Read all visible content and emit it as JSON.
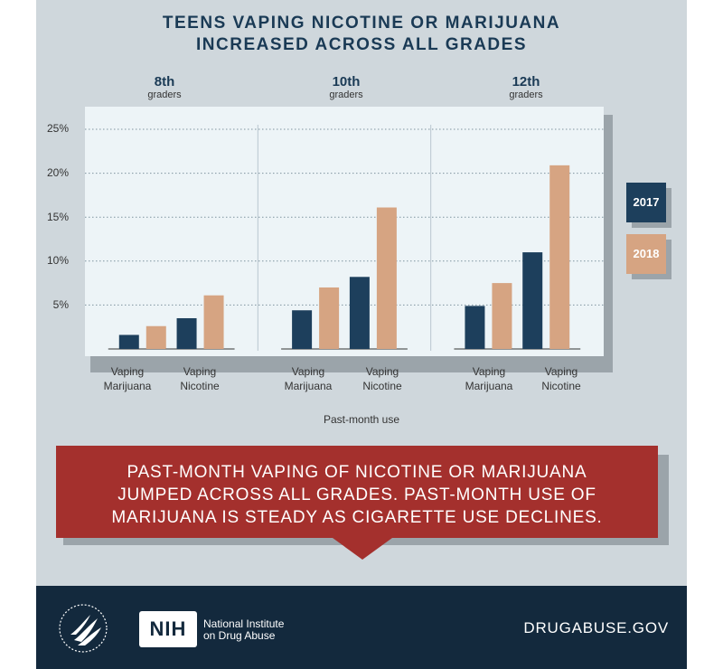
{
  "title_lines": [
    "TEENS VAPING NICOTINE OR MARIJUANA",
    "INCREASED ACROSS ALL GRADES"
  ],
  "groups": [
    {
      "grade": "8th",
      "label": "graders"
    },
    {
      "grade": "10th",
      "label": "graders"
    },
    {
      "grade": "12th",
      "label": "graders"
    }
  ],
  "category_labels": [
    {
      "line1": "Vaping",
      "line2": "Marijuana"
    },
    {
      "line1": "Vaping",
      "line2": "Nicotine"
    }
  ],
  "y_ticks": [
    "25%",
    "20%",
    "15%",
    "10%",
    "5%"
  ],
  "legend": [
    {
      "label": "2017",
      "color": "#1d3f5c"
    },
    {
      "label": "2018",
      "color": "#d6a482"
    }
  ],
  "callout_lines": [
    "PAST-MONTH VAPING OF NICOTINE OR MARIJUANA",
    "JUMPED ACROSS ALL GRADES. PAST-MONTH USE OF",
    "MARIJUANA IS STEADY AS CIGARETTE USE DECLINES."
  ],
  "footer": {
    "nih_abbrev": "NIH",
    "institute_lines": [
      "National Institute",
      "on Drug Abuse"
    ],
    "site": "DRUGABUSE.GOV"
  },
  "chart_data": {
    "type": "bar",
    "xlabel": "Past-month use",
    "ylabel": "",
    "ylim": [
      0,
      25
    ],
    "yticks": [
      5,
      10,
      15,
      20,
      25
    ],
    "grid": true,
    "legend_position": "right",
    "groups": [
      "8th graders",
      "10th graders",
      "12th graders"
    ],
    "categories": [
      "Vaping Marijuana",
      "Vaping Nicotine"
    ],
    "series": [
      {
        "name": "2017",
        "color": "#1d3f5c",
        "values": [
          [
            1.6,
            3.5
          ],
          [
            4.4,
            8.2
          ],
          [
            4.9,
            11.0
          ]
        ]
      },
      {
        "name": "2018",
        "color": "#d6a482",
        "values": [
          [
            2.6,
            6.1
          ],
          [
            7.0,
            16.1
          ],
          [
            7.5,
            20.9
          ]
        ]
      }
    ]
  }
}
